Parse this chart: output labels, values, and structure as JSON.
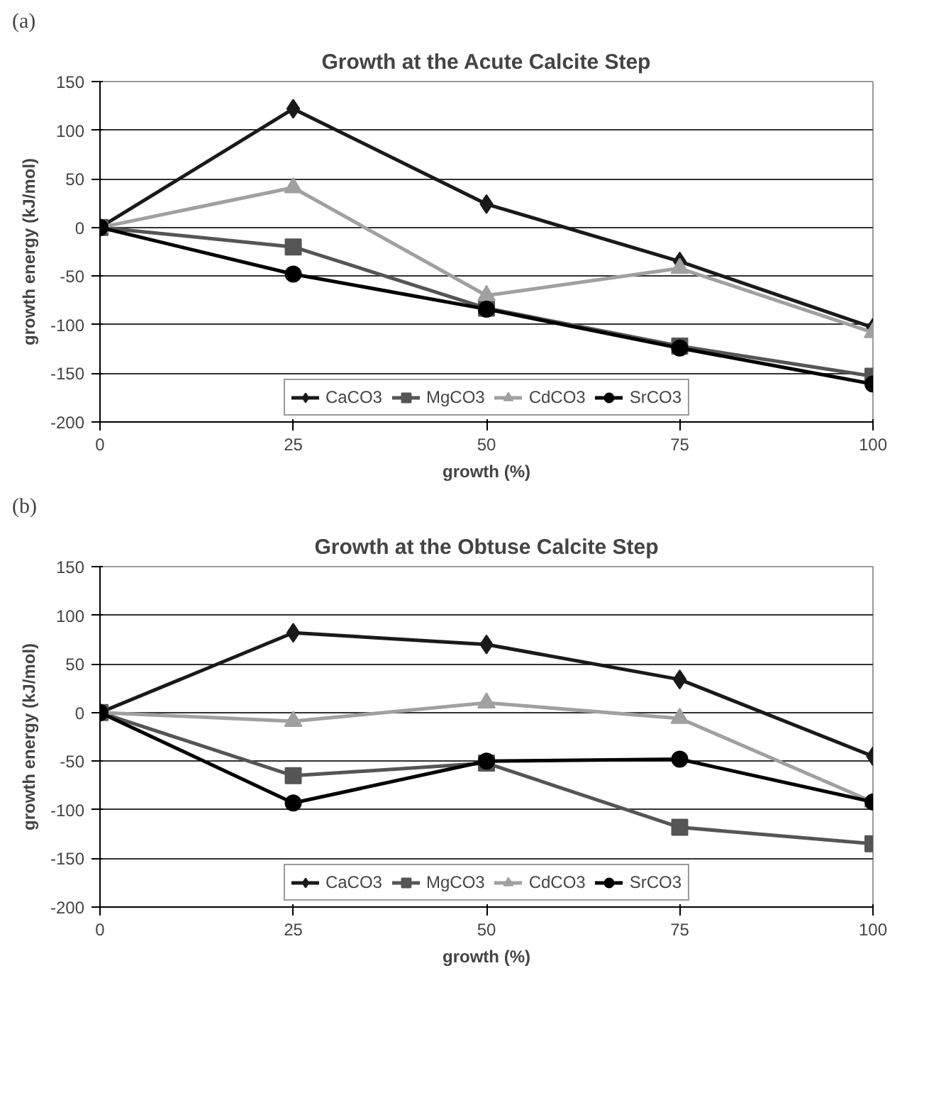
{
  "chart_data": [
    {
      "type": "line",
      "title": "Growth at the Acute Calcite Step",
      "annotations": [
        "(a)"
      ],
      "xlabel": "growth (%)",
      "ylabel": "growth energy (kJ/mol)",
      "x": [
        0,
        25,
        50,
        75,
        100
      ],
      "xlim": [
        0,
        100
      ],
      "ylim": [
        -200,
        150
      ],
      "xticks": [
        0,
        25,
        50,
        75,
        100
      ],
      "yticks": [
        -200,
        -150,
        -100,
        -50,
        0,
        50,
        100,
        150
      ],
      "grid": "y",
      "legend": "bottom",
      "line_style": "solid",
      "series": [
        {
          "name": "CaCO3",
          "color": "#1a1a1a",
          "marker": "diamond",
          "values": [
            0,
            122,
            24,
            -35,
            -103
          ]
        },
        {
          "name": "MgCO3",
          "color": "#555555",
          "marker": "square",
          "values": [
            0,
            -20,
            -83,
            -122,
            -153
          ]
        },
        {
          "name": "CdCO3",
          "color": "#a0a0a0",
          "marker": "triangle",
          "values": [
            0,
            41,
            -70,
            -42,
            -108
          ]
        },
        {
          "name": "SrCO3",
          "color": "#000000",
          "marker": "circle",
          "values": [
            0,
            -48,
            -84,
            -124,
            -161
          ]
        }
      ]
    },
    {
      "type": "line",
      "title": "Growth at the Obtuse Calcite Step",
      "annotations": [
        "(b)"
      ],
      "xlabel": "growth (%)",
      "ylabel": "growth energy (kJ/mol)",
      "x": [
        0,
        25,
        50,
        75,
        100
      ],
      "xlim": [
        0,
        100
      ],
      "ylim": [
        -200,
        150
      ],
      "xticks": [
        0,
        25,
        50,
        75,
        100
      ],
      "yticks": [
        -200,
        -150,
        -100,
        -50,
        0,
        50,
        100,
        150
      ],
      "grid": "y",
      "legend": "bottom",
      "line_style": "solid",
      "series": [
        {
          "name": "CaCO3",
          "color": "#1a1a1a",
          "marker": "diamond",
          "values": [
            0,
            82,
            70,
            34,
            -45
          ]
        },
        {
          "name": "MgCO3",
          "color": "#555555",
          "marker": "square",
          "values": [
            0,
            -65,
            -52,
            -118,
            -135
          ]
        },
        {
          "name": "CdCO3",
          "color": "#a0a0a0",
          "marker": "triangle",
          "values": [
            0,
            -9,
            10,
            -6,
            -92
          ]
        },
        {
          "name": "SrCO3",
          "color": "#000000",
          "marker": "circle",
          "values": [
            0,
            -93,
            -50,
            -48,
            -92
          ]
        }
      ]
    }
  ]
}
